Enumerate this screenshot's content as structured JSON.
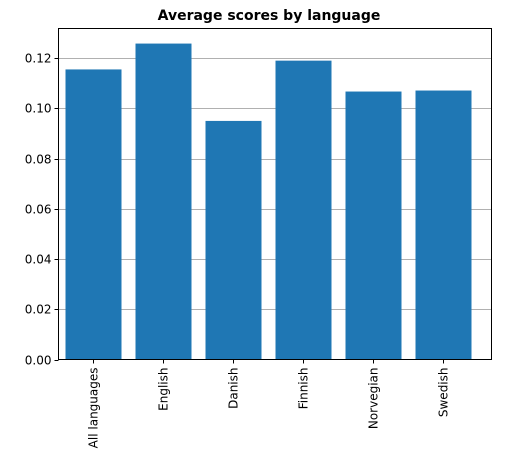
{
  "chart_data": {
    "type": "bar",
    "title": "Average scores by language",
    "xlabel": "",
    "ylabel": "",
    "categories": [
      "All languages",
      "English",
      "Danish",
      "Finnish",
      "Norvegian",
      "Swedish"
    ],
    "values": [
      0.1155,
      0.1258,
      0.095,
      0.119,
      0.1067,
      0.1071
    ],
    "ylim": [
      0,
      0.1318
    ],
    "yticks": [
      0.0,
      0.02,
      0.04,
      0.06,
      0.08,
      0.1,
      0.12
    ],
    "ytick_labels": [
      "0.00",
      "0.02",
      "0.04",
      "0.06",
      "0.08",
      "0.10",
      "0.12"
    ],
    "grid": "y-major",
    "legend": "none",
    "bar_color": "#1f77b4",
    "grid_color": "#b0b0b0"
  }
}
